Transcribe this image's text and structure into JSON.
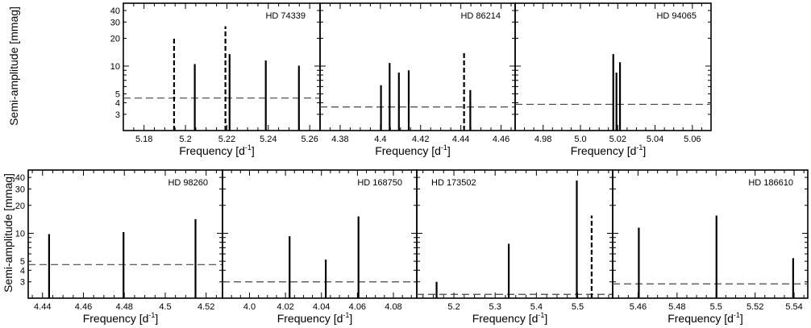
{
  "chart_data": [
    {
      "type": "bar",
      "star": "HD 74339",
      "xlabel": "Frequency  [d",
      "xlabel_sup": "-1",
      "ylabel": "Semi-amplitude [mmag]",
      "xlim": [
        5.17,
        5.265
      ],
      "ylim": [
        2,
        48
      ],
      "yscale": "log",
      "xticks": [
        5.18,
        5.2,
        5.22,
        5.24,
        5.26
      ],
      "xtick_labels": [
        "5.18",
        "5.2",
        "5.22",
        "5.24",
        "5.26"
      ],
      "yticks": [
        3,
        4,
        5,
        10,
        20,
        30,
        40
      ],
      "noise_level": 4.5,
      "peaks": [
        {
          "x": 5.1945,
          "y": 20,
          "style": "dashed"
        },
        {
          "x": 5.2045,
          "y": 10.5,
          "style": "solid"
        },
        {
          "x": 5.2193,
          "y": 27,
          "style": "dashed"
        },
        {
          "x": 5.2213,
          "y": 13.5,
          "style": "solid"
        },
        {
          "x": 5.2388,
          "y": 11.5,
          "style": "solid"
        },
        {
          "x": 5.2548,
          "y": 10.1,
          "style": "solid"
        }
      ]
    },
    {
      "type": "bar",
      "star": "HD 86214",
      "xlabel": "Frequency  [d",
      "xlabel_sup": "-1",
      "ylabel": "",
      "xlim": [
        4.37,
        4.467
      ],
      "ylim": [
        2,
        48
      ],
      "yscale": "log",
      "xticks": [
        4.38,
        4.4,
        4.42,
        4.44,
        4.46
      ],
      "xtick_labels": [
        "4.38",
        "4.4",
        "4.42",
        "4.44",
        "4.46"
      ],
      "yticks": [],
      "noise_level": 3.6,
      "peaks": [
        {
          "x": 4.4003,
          "y": 6.2,
          "style": "solid"
        },
        {
          "x": 4.4046,
          "y": 10.8,
          "style": "solid"
        },
        {
          "x": 4.4092,
          "y": 8.5,
          "style": "solid"
        },
        {
          "x": 4.4141,
          "y": 9.0,
          "style": "solid"
        },
        {
          "x": 4.4416,
          "y": 14,
          "style": "dashed"
        },
        {
          "x": 4.4447,
          "y": 5.5,
          "style": "solid"
        }
      ]
    },
    {
      "type": "bar",
      "star": "HD 94065",
      "xlabel": "Frequency  [d",
      "xlabel_sup": "-1",
      "ylabel": "",
      "xlim": [
        4.965,
        5.07
      ],
      "ylim": [
        2,
        48
      ],
      "yscale": "log",
      "xticks": [
        4.98,
        5.0,
        5.02,
        5.04,
        5.06
      ],
      "xtick_labels": [
        "4.98",
        "5.0",
        "5.02",
        "5.04",
        "5.06"
      ],
      "yticks": [],
      "noise_level": 3.85,
      "peaks": [
        {
          "x": 5.0176,
          "y": 13.5,
          "style": "solid"
        },
        {
          "x": 5.0193,
          "y": 8.5,
          "style": "solid"
        },
        {
          "x": 5.0212,
          "y": 11,
          "style": "solid"
        }
      ]
    },
    {
      "type": "bar",
      "star": "HD 98260",
      "xlabel": "Frequency  [d",
      "xlabel_sup": "-1",
      "ylabel": "Semi-amplitude [mmag]",
      "xlim": [
        4.433,
        4.528
      ],
      "ylim": [
        2,
        48
      ],
      "yscale": "log",
      "xticks": [
        4.44,
        4.46,
        4.48,
        4.5,
        4.52
      ],
      "xtick_labels": [
        "4.44",
        "4.46",
        "4.48",
        "4.5",
        "4.52"
      ],
      "yticks": [
        3,
        4,
        5,
        10,
        20,
        30,
        40
      ],
      "noise_level": 4.6,
      "peaks": [
        {
          "x": 4.4432,
          "y": 9.8,
          "style": "solid"
        },
        {
          "x": 4.4796,
          "y": 10.3,
          "style": "solid"
        },
        {
          "x": 4.5148,
          "y": 14.2,
          "style": "solid"
        }
      ]
    },
    {
      "type": "bar",
      "star": "HD 168750",
      "xlabel": "Frequency  [d",
      "xlabel_sup": "-1",
      "ylabel": "",
      "xlim": [
        3.985,
        4.093
      ],
      "ylim": [
        2,
        48
      ],
      "yscale": "log",
      "xticks": [
        4.0,
        4.02,
        4.04,
        4.06,
        4.08
      ],
      "xtick_labels": [
        "4.0",
        "4.02",
        "4.04",
        "4.06",
        "4.08"
      ],
      "yticks": [],
      "noise_level": 3.0,
      "peaks": [
        {
          "x": 4.0223,
          "y": 9.3,
          "style": "solid"
        },
        {
          "x": 4.0424,
          "y": 5.2,
          "style": "solid"
        },
        {
          "x": 4.0606,
          "y": 15.2,
          "style": "solid"
        }
      ]
    },
    {
      "type": "bar",
      "star": "HD 173502",
      "xlabel": "Frequency  [d",
      "xlabel_sup": "-1",
      "ylabel": "",
      "xlim": [
        5.11,
        5.585
      ],
      "ylim": [
        2,
        48
      ],
      "yscale": "log",
      "xticks": [
        5.2,
        5.3,
        5.4,
        5.5
      ],
      "xtick_labels": [
        "5.2",
        "5.3",
        "5.4",
        "5.5"
      ],
      "yticks": [],
      "noise_level": 2.2,
      "peaks": [
        {
          "x": 5.158,
          "y": 3.0,
          "style": "solid"
        },
        {
          "x": 5.333,
          "y": 7.7,
          "style": "solid"
        },
        {
          "x": 5.498,
          "y": 37,
          "style": "solid"
        },
        {
          "x": 5.534,
          "y": 15.5,
          "style": "dashed"
        }
      ]
    },
    {
      "type": "bar",
      "star": "HD 186610",
      "xlabel": "Frequency  [d",
      "xlabel_sup": "-1",
      "ylabel": "",
      "xlim": [
        5.447,
        5.547
      ],
      "ylim": [
        2,
        48
      ],
      "yscale": "log",
      "xticks": [
        5.46,
        5.48,
        5.5,
        5.52,
        5.54
      ],
      "xtick_labels": [
        "5.46",
        "5.48",
        "5.5",
        "5.52",
        "5.54"
      ],
      "yticks": [],
      "noise_level": 2.85,
      "peaks": [
        {
          "x": 5.4604,
          "y": 11.5,
          "style": "solid"
        },
        {
          "x": 5.5002,
          "y": 15.5,
          "style": "solid"
        },
        {
          "x": 5.5395,
          "y": 5.4,
          "style": "solid"
        }
      ]
    }
  ]
}
